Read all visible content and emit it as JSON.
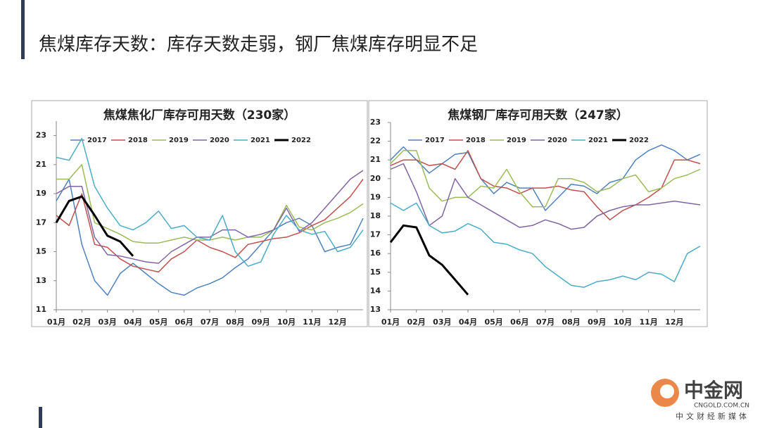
{
  "page_title": "焦煤库存天数：库存天数走弱，钢厂焦煤库存明显不足",
  "watermark": {
    "brand": "中金网",
    "site": "CNGOLD.COM.CN",
    "slogan": "中文财经新媒体"
  },
  "chart_data": [
    {
      "type": "line",
      "title": "焦煤焦化厂库存可用天数（230家）",
      "x": [
        1,
        1.5,
        2,
        2.5,
        3,
        3.5,
        4,
        4.5,
        5,
        5.5,
        6,
        6.5,
        7,
        7.5,
        8,
        8.5,
        9,
        9.5,
        10,
        10.5,
        11,
        11.5,
        12,
        12.5,
        13
      ],
      "xlim": [
        1,
        13
      ],
      "xticks": [
        {
          "value": 1,
          "label": "01月"
        },
        {
          "value": 2,
          "label": "02月"
        },
        {
          "value": 3,
          "label": "03月"
        },
        {
          "value": 4,
          "label": "04月"
        },
        {
          "value": 5,
          "label": "05月"
        },
        {
          "value": 6,
          "label": "06月"
        },
        {
          "value": 7,
          "label": "07月"
        },
        {
          "value": 8,
          "label": "08月"
        },
        {
          "value": 9,
          "label": "09月"
        },
        {
          "value": 10,
          "label": "10月"
        },
        {
          "value": 11,
          "label": "11月"
        },
        {
          "value": 12,
          "label": "12月"
        }
      ],
      "ylim": [
        11,
        24
      ],
      "yticks": [
        11,
        13,
        15,
        17,
        19,
        21,
        23
      ],
      "series": [
        {
          "name": "2017",
          "color": "#4f81bd",
          "width": 1.5,
          "values": [
            18.5,
            20,
            15.5,
            13,
            12,
            13.5,
            14.2,
            13.5,
            12.8,
            12.2,
            12,
            12.5,
            12.8,
            13.2,
            13.9,
            14.5,
            15.5,
            16.5,
            17,
            17.3,
            16.8,
            15,
            15.3,
            15.5,
            17.3
          ]
        },
        {
          "name": "2018",
          "color": "#c0504d",
          "width": 1.5,
          "values": [
            17.5,
            16.8,
            19,
            15.5,
            15.3,
            14.5,
            14,
            13.8,
            13.6,
            14.5,
            15,
            15.8,
            15.3,
            15,
            14.6,
            15.5,
            15.7,
            15.9,
            16,
            16.3,
            16.8,
            17.2,
            18,
            18.8,
            20
          ]
        },
        {
          "name": "2019",
          "color": "#9bbb59",
          "width": 1.5,
          "values": [
            20,
            20,
            21,
            17,
            16.6,
            16.2,
            15.7,
            15.6,
            15.6,
            15.8,
            16,
            15.8,
            15.8,
            16,
            15.8,
            16,
            16,
            16.5,
            18.2,
            16.7,
            16.5,
            17,
            17.3,
            17.7,
            18.3
          ]
        },
        {
          "name": "2020",
          "color": "#8064a2",
          "width": 1.5,
          "values": [
            19,
            19.5,
            19.5,
            16,
            14.8,
            14.7,
            14.5,
            14.3,
            14.2,
            15,
            15.5,
            16,
            16,
            16.5,
            16.5,
            16,
            16.2,
            16.5,
            18,
            16.4,
            17,
            18,
            19,
            20,
            20.6
          ]
        },
        {
          "name": "2021",
          "color": "#4bacc6",
          "width": 1.5,
          "values": [
            21.5,
            21.3,
            22.8,
            19.5,
            18,
            16.8,
            16.5,
            17,
            17.8,
            16.6,
            16.8,
            16,
            15.8,
            17.5,
            15,
            14,
            14.3,
            16.2,
            17.5,
            16.5,
            16.2,
            16.4,
            15,
            15.3,
            16.5
          ]
        },
        {
          "name": "2022",
          "color": "#000000",
          "width": 3,
          "values": [
            17,
            18.5,
            18.8,
            17.5,
            16.1,
            15.7,
            14.7,
            null,
            null,
            null,
            null,
            null,
            null,
            null,
            null,
            null,
            null,
            null,
            null,
            null,
            null,
            null,
            null,
            null,
            null
          ]
        }
      ]
    },
    {
      "type": "line",
      "title": "焦煤钢厂库存可用天数（247家）",
      "x": [
        1,
        1.5,
        2,
        2.5,
        3,
        3.5,
        4,
        4.5,
        5,
        5.5,
        6,
        6.5,
        7,
        7.5,
        8,
        8.5,
        9,
        9.5,
        10,
        10.5,
        11,
        11.5,
        12,
        12.5,
        13
      ],
      "xlim": [
        1,
        13
      ],
      "xticks": [
        {
          "value": 1,
          "label": "01月"
        },
        {
          "value": 2,
          "label": "02月"
        },
        {
          "value": 3,
          "label": "03月"
        },
        {
          "value": 4,
          "label": "04月"
        },
        {
          "value": 5,
          "label": "05月"
        },
        {
          "value": 6,
          "label": "06月"
        },
        {
          "value": 7,
          "label": "07月"
        },
        {
          "value": 8,
          "label": "08月"
        },
        {
          "value": 9,
          "label": "09月"
        },
        {
          "value": 10,
          "label": "10月"
        },
        {
          "value": 11,
          "label": "11月"
        },
        {
          "value": 12,
          "label": "12月"
        }
      ],
      "ylim": [
        13,
        23
      ],
      "yticks": [
        13,
        14,
        15,
        16,
        17,
        18,
        19,
        20,
        21,
        22,
        23
      ],
      "series": [
        {
          "name": "2017",
          "color": "#4f81bd",
          "width": 1.5,
          "values": [
            21,
            21.7,
            21,
            20.3,
            20.8,
            21.3,
            21.4,
            20,
            19.2,
            19.8,
            19.5,
            19.5,
            18.3,
            19,
            19.7,
            19.6,
            19.2,
            19.8,
            20,
            21,
            21.5,
            21.8,
            21.5,
            21,
            21.3
          ]
        },
        {
          "name": "2018",
          "color": "#c0504d",
          "width": 1.5,
          "values": [
            20.7,
            21,
            21,
            20.7,
            20.8,
            20.5,
            21.5,
            20,
            19.6,
            19.5,
            19.2,
            19.5,
            19.5,
            19.6,
            19.4,
            19.3,
            18.5,
            17.8,
            18.3,
            18.6,
            19,
            19.5,
            21,
            21,
            20.8
          ]
        },
        {
          "name": "2019",
          "color": "#9bbb59",
          "width": 1.5,
          "values": [
            20.8,
            21.5,
            21.5,
            19.5,
            18.8,
            19,
            19,
            19.6,
            19.5,
            20.5,
            19.3,
            18.5,
            18.5,
            20,
            20,
            19.8,
            19.3,
            19.5,
            20,
            20.2,
            19.3,
            19.5,
            20,
            20.2,
            20.5
          ]
        },
        {
          "name": "2020",
          "color": "#8064a2",
          "width": 1.5,
          "values": [
            20.5,
            20.8,
            19.3,
            17.5,
            18,
            20,
            19,
            18.6,
            18.2,
            17.8,
            17.4,
            17.5,
            17.8,
            17.6,
            17.3,
            17.4,
            18,
            18.3,
            18.5,
            18.6,
            18.6,
            18.7,
            18.8,
            18.7,
            18.6
          ]
        },
        {
          "name": "2021",
          "color": "#4bacc6",
          "width": 1.5,
          "values": [
            18.7,
            18.3,
            18.7,
            17.5,
            17.1,
            17.2,
            17.6,
            17.3,
            16.6,
            16.5,
            16.2,
            16,
            15.3,
            14.8,
            14.3,
            14.2,
            14.5,
            14.6,
            14.8,
            14.6,
            15,
            14.9,
            14.5,
            16,
            16.4
          ]
        },
        {
          "name": "2022",
          "color": "#000000",
          "width": 3,
          "values": [
            16.6,
            17.5,
            17.4,
            15.9,
            15.4,
            14.6,
            13.8,
            null,
            null,
            null,
            null,
            null,
            null,
            null,
            null,
            null,
            null,
            null,
            null,
            null,
            null,
            null,
            null,
            null,
            null
          ]
        }
      ]
    }
  ]
}
